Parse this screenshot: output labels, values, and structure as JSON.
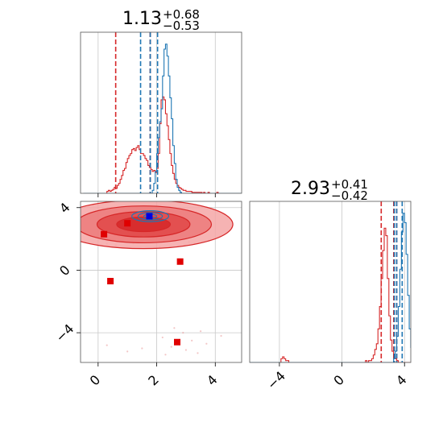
{
  "chart_data": [
    {
      "type": "histogram",
      "panel": "top-left",
      "title": {
        "value": "1.13",
        "plus": "+0.68",
        "minus": "−0.53"
      },
      "x_range": [
        -0.6,
        4.9
      ],
      "x_ticks": [
        0,
        2,
        4
      ],
      "grid": true,
      "series": [
        {
          "color": "#d62728",
          "bin_edges_start": -0.5,
          "bin_width": 0.05,
          "counts": [
            0,
            0,
            0,
            0,
            0,
            0,
            0,
            0,
            0,
            0,
            0,
            0,
            0,
            0,
            0,
            0,
            2,
            3,
            2,
            3,
            4,
            6,
            5,
            8,
            10,
            14,
            18,
            23,
            25,
            31,
            35,
            38,
            40,
            44,
            45,
            43,
            46,
            48,
            44,
            40,
            40,
            38,
            35,
            33,
            28,
            26,
            24,
            22,
            23,
            21,
            25,
            40,
            70,
            94,
            97,
            94,
            80,
            68,
            54,
            40,
            28,
            20,
            14,
            10,
            8,
            6,
            5,
            4,
            3,
            3,
            2,
            2,
            2,
            2,
            1,
            1,
            1,
            1,
            1,
            1,
            1,
            0,
            1,
            0,
            0,
            1,
            0,
            0,
            0,
            0,
            0,
            1,
            0,
            0,
            0,
            0,
            0,
            0,
            0,
            0,
            0,
            0,
            0,
            0,
            0,
            0,
            0,
            0,
            0,
            0,
            0
          ],
          "quantile_lines": [
            0.6,
            1.78,
            1.78
          ]
        },
        {
          "color": "#1f77b4",
          "bin_edges_start": -0.5,
          "bin_width": 0.05,
          "counts": [
            0,
            0,
            0,
            0,
            0,
            0,
            0,
            0,
            0,
            0,
            0,
            0,
            0,
            0,
            0,
            0,
            0,
            0,
            0,
            0,
            0,
            0,
            0,
            0,
            0,
            0,
            0,
            0,
            0,
            0,
            0,
            0,
            0,
            0,
            0,
            0,
            0,
            0,
            0,
            0,
            0,
            0,
            0,
            0,
            0,
            0,
            0,
            3,
            10,
            22,
            40,
            56,
            72,
            85,
            118,
            145,
            150,
            138,
            118,
            96,
            75,
            48,
            30,
            14,
            6,
            3,
            1,
            0,
            0,
            0,
            0,
            0,
            0,
            0,
            0,
            0,
            0,
            0,
            0,
            0,
            0,
            0,
            0,
            0,
            0,
            0,
            0,
            0,
            0,
            0,
            0,
            0,
            0,
            0,
            0,
            0,
            0,
            0,
            0,
            0,
            0,
            0,
            0,
            0,
            0,
            0,
            0,
            0,
            0,
            0,
            0
          ],
          "quantile_lines": [
            1.45,
            1.78,
            2.03
          ]
        }
      ]
    },
    {
      "type": "contour-scatter",
      "panel": "bottom-left",
      "x_range": [
        -0.6,
        4.9
      ],
      "y_range": [
        -5.9,
        4.4
      ],
      "x_ticks": [
        0,
        2,
        4
      ],
      "y_ticks": [
        -4,
        0,
        4
      ],
      "grid": true,
      "contours": [
        {
          "color": "#d62728",
          "center": [
            1.55,
            2.93
          ],
          "half_widths": [
            3.05,
            1.55
          ],
          "levels": [
            1.0,
            0.76,
            0.52,
            0.3
          ]
        },
        {
          "color": "#1f77b4",
          "center": [
            1.78,
            3.45
          ],
          "half_widths": [
            0.63,
            0.35
          ],
          "levels": [
            1.0,
            0.66,
            0.35
          ]
        }
      ],
      "markers": [
        {
          "color": "#e00000",
          "x": 0.2,
          "y": 2.3
        },
        {
          "color": "#e00000",
          "x": 1.0,
          "y": 3.0
        },
        {
          "color": "#e00000",
          "x": 2.8,
          "y": 0.55
        },
        {
          "color": "#e00000",
          "x": 0.42,
          "y": -0.7
        },
        {
          "color": "#e00000",
          "x": 2.7,
          "y": -4.6
        },
        {
          "color": "#0000e0",
          "x": 1.75,
          "y": 3.45
        }
      ],
      "scatter_points": [
        [
          0.3,
          1.7
        ],
        [
          0.6,
          1.6
        ],
        [
          1.2,
          1.7
        ],
        [
          2.1,
          1.5
        ],
        [
          3.2,
          2.2
        ],
        [
          3.3,
          1.7
        ],
        [
          3.1,
          1.8
        ],
        [
          0.3,
          -4.8
        ],
        [
          1.0,
          -5.2
        ],
        [
          2.2,
          -4.3
        ],
        [
          2.5,
          -4.9
        ],
        [
          3.2,
          -4.5
        ],
        [
          3.5,
          -3.9
        ],
        [
          3.0,
          -5.1
        ],
        [
          2.6,
          -3.7
        ],
        [
          1.5,
          -5.0
        ],
        [
          3.7,
          -4.7
        ],
        [
          4.2,
          -4.2
        ],
        [
          2.9,
          -4.0
        ],
        [
          3.4,
          -5.3
        ],
        [
          2.3,
          -5.4
        ]
      ]
    },
    {
      "type": "histogram",
      "panel": "bottom-right",
      "title": {
        "value": "2.93",
        "plus": "+0.41",
        "minus": "−0.42"
      },
      "x_range": [
        -5.9,
        4.4
      ],
      "x_ticks": [
        -4,
        0,
        4
      ],
      "grid": true,
      "series": [
        {
          "color": "#d62728",
          "bin_edges_start": -6.0,
          "bin_width": 0.1,
          "counts": [
            0,
            0,
            0,
            0,
            0,
            0,
            0,
            0,
            0,
            0,
            0,
            0,
            0,
            0,
            0,
            0,
            0,
            0,
            0,
            0,
            0,
            2,
            3,
            2,
            1,
            1,
            0,
            0,
            0,
            0,
            0,
            0,
            0,
            0,
            0,
            0,
            0,
            0,
            0,
            0,
            0,
            0,
            0,
            0,
            0,
            0,
            0,
            0,
            0,
            0,
            0,
            0,
            0,
            0,
            0,
            0,
            0,
            0,
            0,
            0,
            0,
            0,
            0,
            0,
            0,
            0,
            0,
            0,
            0,
            0,
            0,
            0,
            0,
            0,
            0,
            1,
            0,
            1,
            1,
            2,
            4,
            7,
            10,
            18,
            30,
            45,
            60,
            72,
            68,
            45,
            25,
            12,
            6,
            3,
            2,
            1,
            0,
            0,
            0,
            0,
            0,
            0,
            0,
            0,
            0
          ],
          "quantile_lines": [
            2.51,
            3.31,
            3.5
          ]
        },
        {
          "color": "#1f77b4",
          "bin_edges_start": -6.0,
          "bin_width": 0.1,
          "counts": [
            0,
            0,
            0,
            0,
            0,
            0,
            0,
            0,
            0,
            0,
            0,
            0,
            0,
            0,
            0,
            0,
            0,
            0,
            0,
            0,
            0,
            0,
            0,
            0,
            0,
            0,
            0,
            0,
            0,
            0,
            0,
            0,
            0,
            0,
            0,
            0,
            0,
            0,
            0,
            0,
            0,
            0,
            0,
            0,
            0,
            0,
            0,
            0,
            0,
            0,
            0,
            0,
            0,
            0,
            0,
            0,
            0,
            0,
            0,
            0,
            0,
            0,
            0,
            0,
            0,
            0,
            0,
            0,
            0,
            0,
            0,
            0,
            0,
            0,
            0,
            0,
            0,
            0,
            0,
            0,
            0,
            0,
            0,
            0,
            0,
            0,
            0,
            0,
            0,
            0,
            0,
            0,
            0,
            2,
            6,
            14,
            30,
            50,
            70,
            80,
            75,
            58,
            36,
            18,
            8,
            4,
            2,
            1
          ],
          "quantile_lines": [
            3.35,
            3.5,
            3.85
          ]
        }
      ]
    }
  ]
}
